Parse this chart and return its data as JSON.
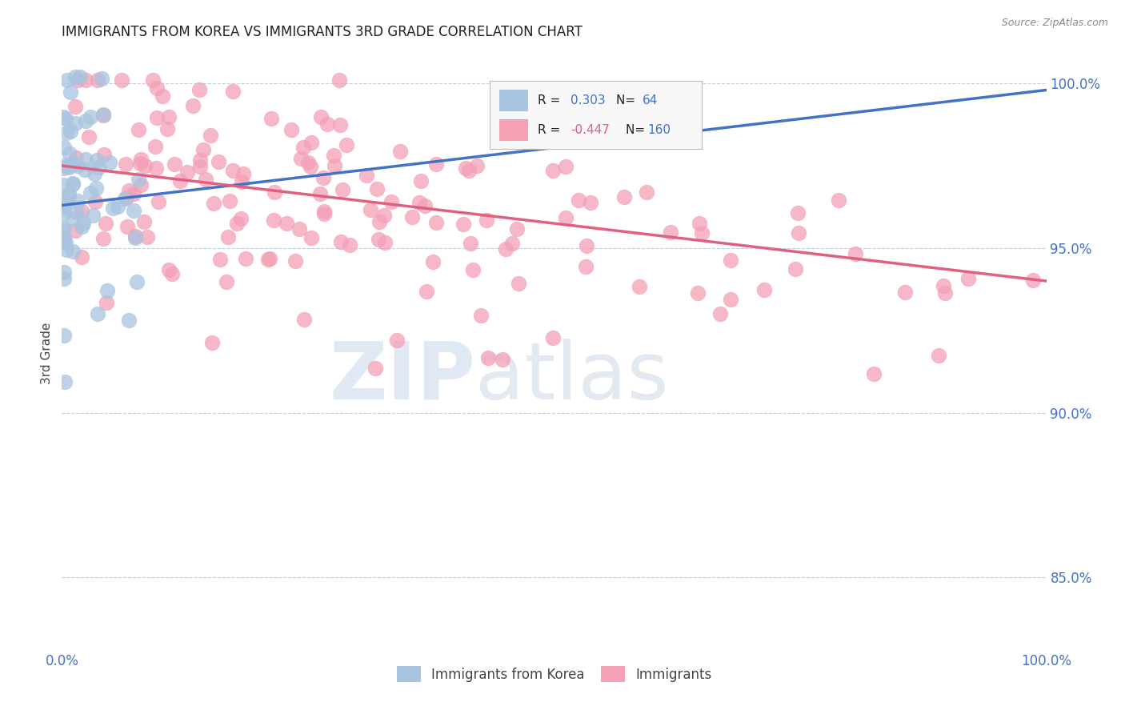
{
  "title": "IMMIGRANTS FROM KOREA VS IMMIGRANTS 3RD GRADE CORRELATION CHART",
  "source": "Source: ZipAtlas.com",
  "ylabel": "3rd Grade",
  "ytick_labels": [
    "85.0%",
    "90.0%",
    "95.0%",
    "100.0%"
  ],
  "ytick_values": [
    0.85,
    0.9,
    0.95,
    1.0
  ],
  "legend_blue_label": "Immigrants from Korea",
  "legend_pink_label": "Immigrants",
  "blue_color": "#a8c4e0",
  "pink_color": "#f4a0b5",
  "blue_line_color": "#4472c4",
  "pink_line_color": "#e06080",
  "background_color": "#ffffff",
  "grid_color": "#c0d0e0",
  "label_color": "#4472c4",
  "xlim": [
    0.0,
    1.0
  ],
  "ylim": [
    0.828,
    1.008
  ]
}
